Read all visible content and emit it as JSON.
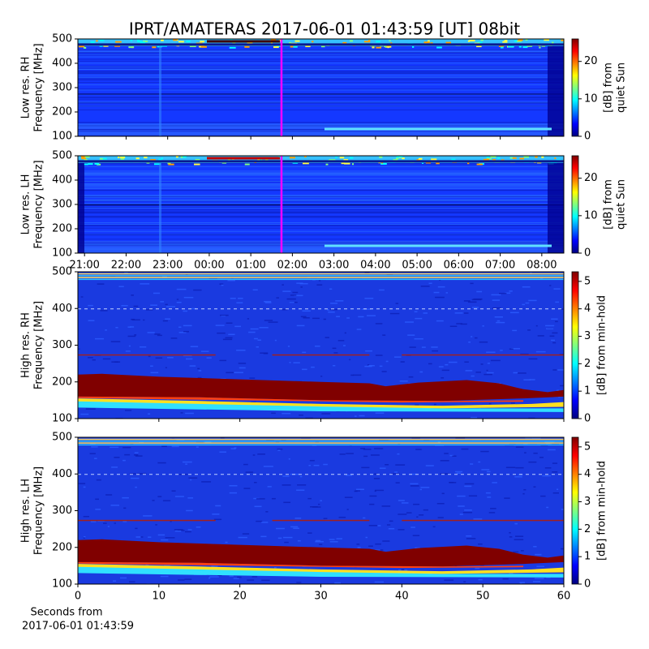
{
  "title": "IPRT/AMATERAS 2017-06-01 01:43:59 [UT]   08bit",
  "chart_data": [
    {
      "type": "spectrogram",
      "ylabel": [
        "Low res. RH",
        "Frequency [MHz]"
      ],
      "ylim": [
        100,
        500
      ],
      "yticks": [
        100,
        200,
        300,
        400,
        500
      ],
      "xlim": [
        -3.16,
        8.53
      ],
      "xticks": [
        -3,
        -2,
        -1,
        0,
        1,
        2,
        3,
        4,
        5,
        6,
        7,
        8
      ],
      "marker_x": 1.733,
      "marker_color": "#ff00ff",
      "colormap": "jet",
      "colorbar": {
        "lim": [
          0,
          26
        ],
        "ticks": [
          0,
          10,
          20
        ],
        "label": [
          "[dB] from",
          "quiet Sun"
        ]
      }
    },
    {
      "type": "spectrogram",
      "ylabel": [
        "Low res. LH",
        "Frequency [MHz]"
      ],
      "ylim": [
        100,
        500
      ],
      "yticks": [
        100,
        200,
        300,
        400,
        500
      ],
      "xlim": [
        -3.16,
        8.53
      ],
      "xticks": [
        {
          "value": -3,
          "label": "21:00"
        },
        {
          "value": -2,
          "label": "22:00"
        },
        {
          "value": -1,
          "label": "23:00"
        },
        {
          "value": 0,
          "label": "00:00"
        },
        {
          "value": 1,
          "label": "01:00"
        },
        {
          "value": 2,
          "label": "02:00"
        },
        {
          "value": 3,
          "label": "03:00"
        },
        {
          "value": 4,
          "label": "04:00"
        },
        {
          "value": 5,
          "label": "05:00"
        },
        {
          "value": 6,
          "label": "06:00"
        },
        {
          "value": 7,
          "label": "07:00"
        },
        {
          "value": 8,
          "label": "08:00"
        }
      ],
      "marker_x": 1.733,
      "marker_color": "#ff00ff",
      "colormap": "jet",
      "colorbar": {
        "lim": [
          0,
          26
        ],
        "ticks": [
          0,
          10,
          20
        ],
        "label": [
          "[dB] from",
          "quiet Sun"
        ]
      }
    },
    {
      "type": "spectrogram",
      "ylabel": [
        "High res. RH",
        "Frequency [MHz]"
      ],
      "ylim": [
        100,
        500
      ],
      "yticks": [
        100,
        200,
        300,
        400,
        500
      ],
      "xlim": [
        0,
        60
      ],
      "xticks": [
        0,
        10,
        20,
        30,
        40,
        50,
        60
      ],
      "colormap": "jet",
      "colorbar": {
        "lim": [
          0,
          5.35
        ],
        "ticks": [
          0,
          1,
          2,
          3,
          4,
          5
        ],
        "label": [
          "[dB] from min-hold"
        ]
      }
    },
    {
      "type": "spectrogram",
      "ylabel": [
        "High res. LH",
        "Frequency [MHz]"
      ],
      "ylim": [
        100,
        500
      ],
      "yticks": [
        100,
        200,
        300,
        400,
        500
      ],
      "xlim": [
        0,
        60
      ],
      "xticks": [
        0,
        10,
        20,
        30,
        40,
        50,
        60
      ],
      "xlabel": [
        "Seconds from",
        "2017-06-01 01:43:59"
      ],
      "colormap": "jet",
      "colorbar": {
        "lim": [
          0,
          5.35
        ],
        "ticks": [
          0,
          1,
          2,
          3,
          4,
          5
        ],
        "label": [
          "[dB] from min-hold"
        ]
      }
    }
  ]
}
